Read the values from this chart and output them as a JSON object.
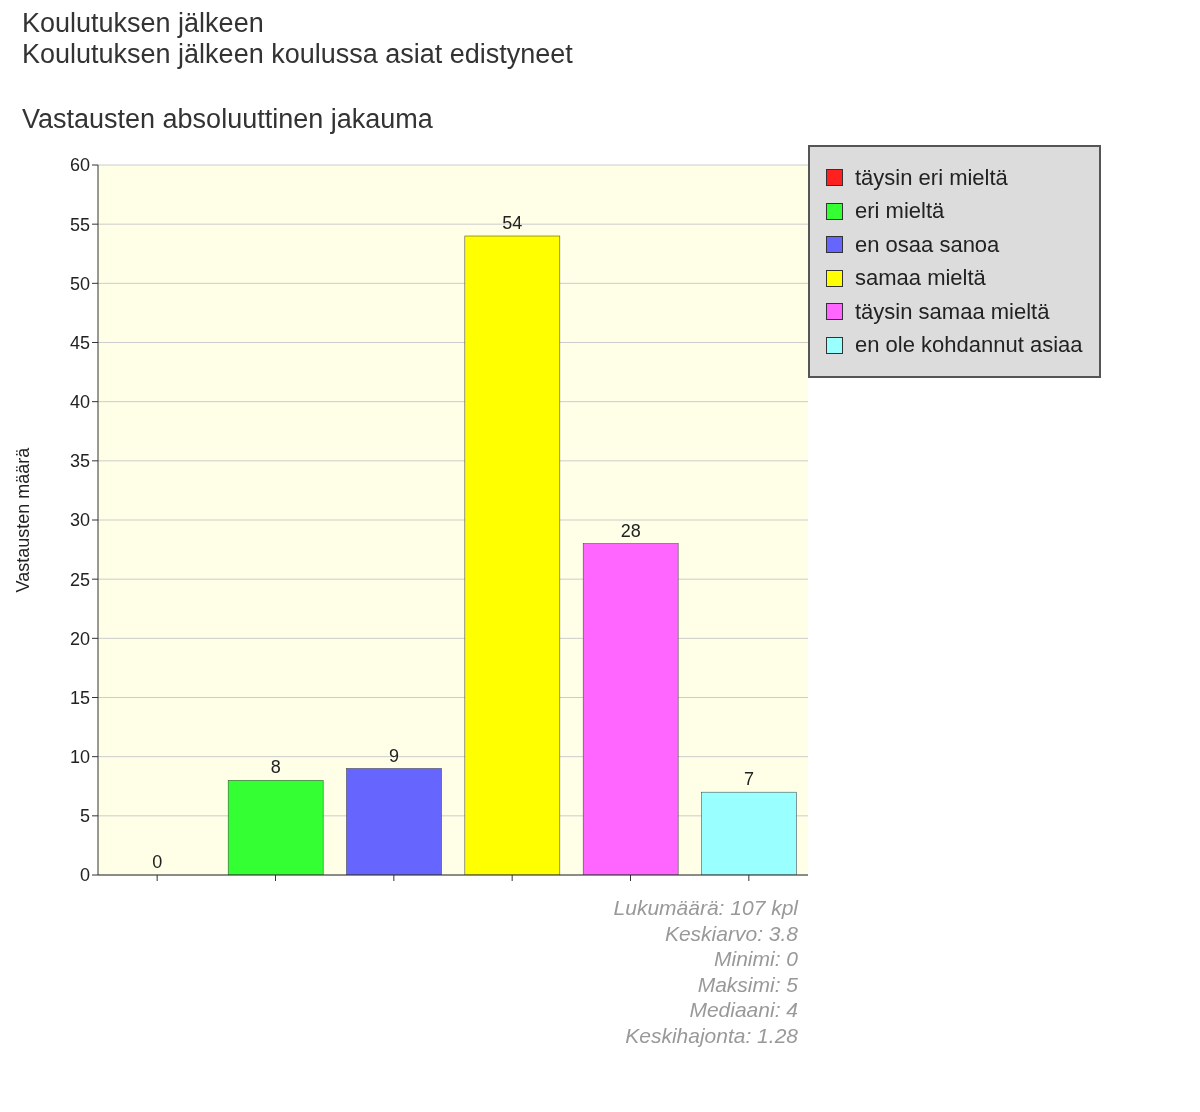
{
  "chart_data": {
    "type": "bar",
    "title": "Koulutuksen jälkeen\nKoulutuksen jälkeen koulussa asiat edistyneet",
    "subtitle": "Vastausten absoluuttinen jakauma",
    "ylabel": "Vastausten määrä",
    "categories": [
      null,
      null,
      null,
      null,
      null,
      null
    ],
    "series": [
      {
        "name": "täysin eri mieltä",
        "color": "#ff2020",
        "values": [
          0,
          null,
          null,
          null,
          null,
          null
        ]
      },
      {
        "name": "eri mieltä",
        "color": "#33ff33",
        "values": [
          null,
          8,
          null,
          null,
          null,
          null
        ]
      },
      {
        "name": "en osaa sanoa",
        "color": "#6666ff",
        "values": [
          null,
          null,
          9,
          null,
          null,
          null
        ]
      },
      {
        "name": "samaa mieltä",
        "color": "#ffff00",
        "values": [
          null,
          null,
          null,
          54,
          null,
          null
        ]
      },
      {
        "name": "täysin samaa mieltä",
        "color": "#ff66ff",
        "values": [
          null,
          null,
          null,
          null,
          28,
          null
        ]
      },
      {
        "name": "en ole kohdannut asiaa",
        "color": "#99ffff",
        "values": [
          null,
          null,
          null,
          null,
          null,
          7
        ]
      }
    ],
    "ylim": [
      0,
      60
    ],
    "yticks": [
      0,
      5,
      10,
      15,
      20,
      25,
      30,
      35,
      40,
      45,
      50,
      55,
      60
    ],
    "grid": "y",
    "legend": "right",
    "data_labels": true,
    "tick_labels": "y",
    "annotations": [
      "Lukumäärä: 107 kpl",
      "Keskiarvo: 3.8",
      "Minimi: 0",
      "Maksimi: 5",
      "Mediaani: 4",
      "Keskihajonta: 1.28"
    ]
  }
}
